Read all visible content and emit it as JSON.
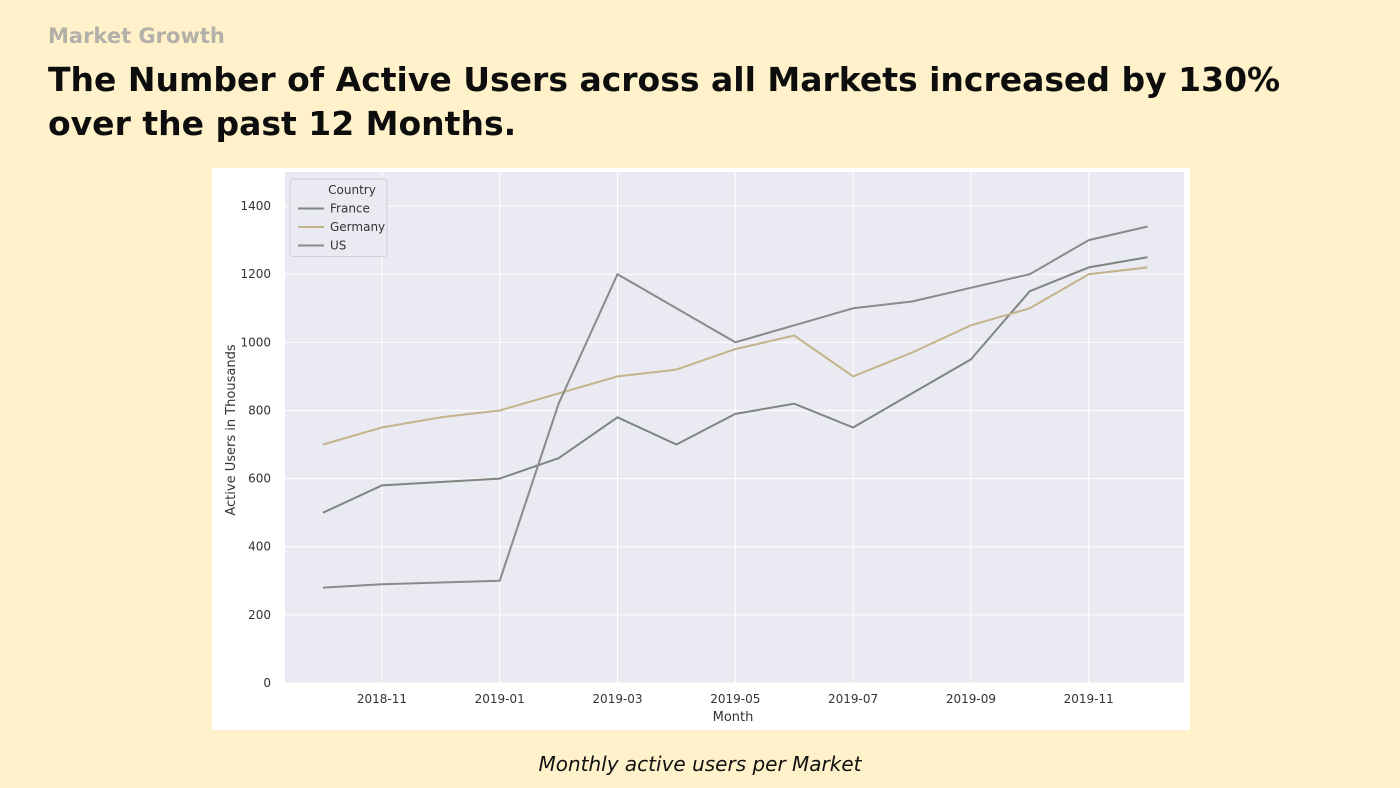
{
  "header": {
    "kicker": "Market Growth",
    "title": "The Number of Active Users across all Markets increased by 130% over the past 12 Months."
  },
  "caption": "Monthly active users per Market",
  "chart_data": {
    "type": "line",
    "title": "",
    "xlabel": "Month",
    "ylabel": "Active Users in Thousands",
    "x": [
      "2018-10",
      "2018-11",
      "2018-12",
      "2019-01",
      "2019-02",
      "2019-03",
      "2019-04",
      "2019-05",
      "2019-06",
      "2019-07",
      "2019-08",
      "2019-09",
      "2019-10",
      "2019-11",
      "2019-12"
    ],
    "x_ticks": [
      "2018-11",
      "2019-01",
      "2019-03",
      "2019-05",
      "2019-07",
      "2019-09",
      "2019-11"
    ],
    "ylim": [
      0,
      1500
    ],
    "y_ticks": [
      0,
      200,
      400,
      600,
      800,
      1000,
      1200,
      1400
    ],
    "grid": true,
    "legend": {
      "title": "Country",
      "position": "top-left"
    },
    "series": [
      {
        "name": "France",
        "color": "#7f8580",
        "values": [
          500,
          580,
          590,
          600,
          660,
          780,
          700,
          790,
          820,
          750,
          850,
          950,
          1150,
          1220,
          1250
        ]
      },
      {
        "name": "Germany",
        "color": "#c4b48a",
        "values": [
          700,
          750,
          780,
          800,
          850,
          900,
          920,
          980,
          1020,
          900,
          970,
          1050,
          1100,
          1200,
          1220
        ]
      },
      {
        "name": "US",
        "color": "#8a8a8a",
        "values": [
          280,
          290,
          295,
          300,
          820,
          1200,
          1100,
          1000,
          1050,
          1100,
          1120,
          1160,
          1200,
          1300,
          1340
        ]
      }
    ],
    "style": {
      "plot_bg": "#eaeaf2",
      "grid_color": "#ffffff"
    }
  }
}
